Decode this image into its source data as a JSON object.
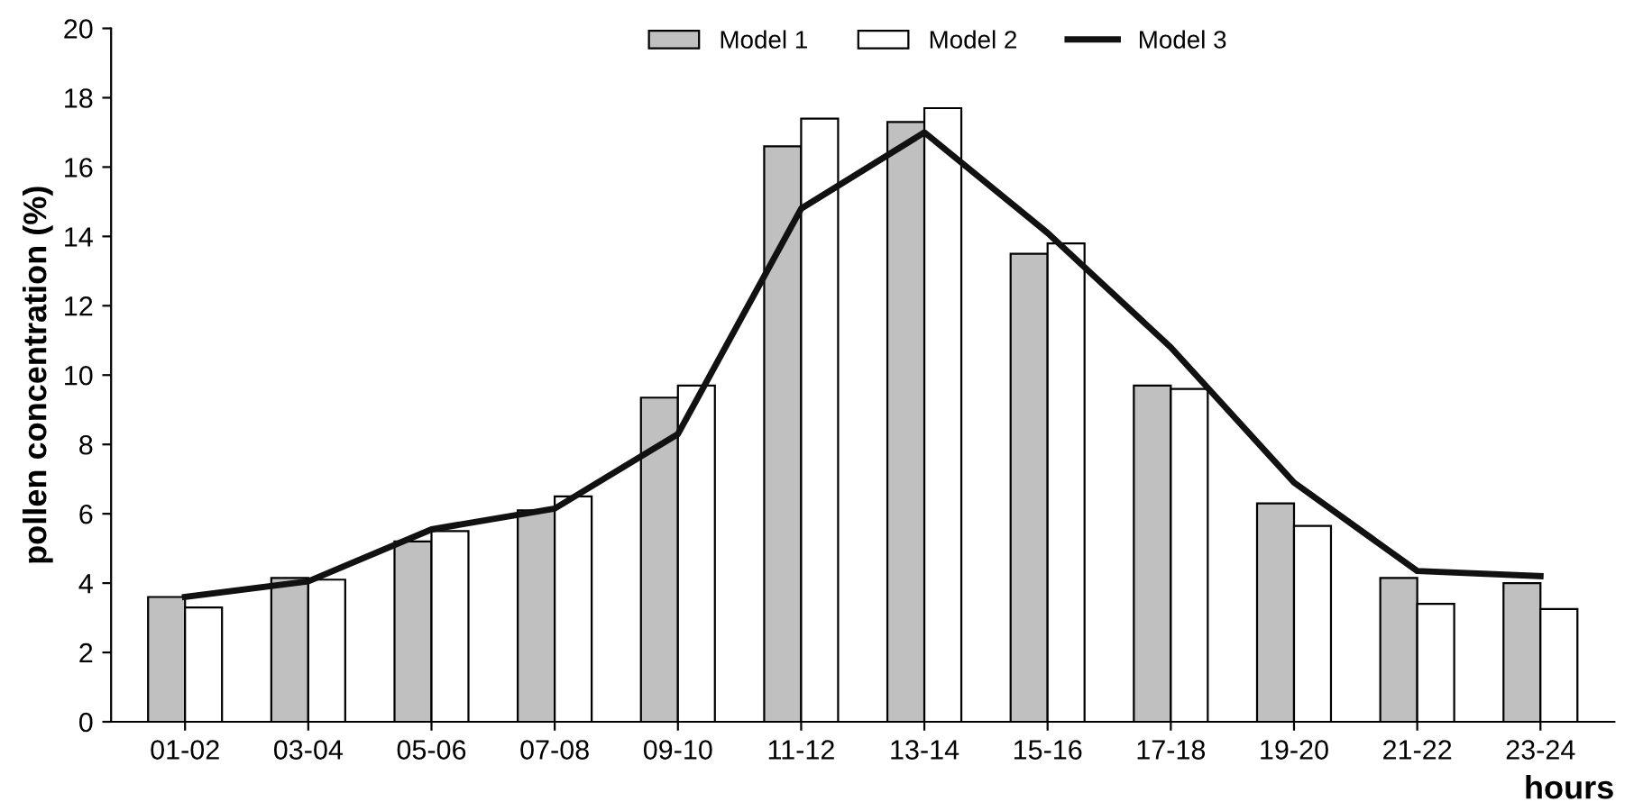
{
  "chart_data": {
    "type": "bar",
    "xlabel": "hours",
    "ylabel": "pollen concentration (%)",
    "categories": [
      "01-02",
      "03-04",
      "05-06",
      "07-08",
      "09-10",
      "11-12",
      "13-14",
      "15-16",
      "17-18",
      "19-20",
      "21-22",
      "23-24"
    ],
    "series": [
      {
        "name": "Model 1",
        "color": "#c0c0c0",
        "values": [
          3.6,
          4.15,
          5.2,
          6.1,
          9.35,
          16.6,
          17.3,
          13.5,
          9.7,
          6.3,
          4.15,
          4.0
        ]
      },
      {
        "name": "Model 2",
        "color": "#ffffff",
        "values": [
          3.3,
          4.1,
          5.5,
          6.5,
          9.7,
          17.4,
          17.7,
          13.8,
          9.6,
          5.65,
          3.4,
          3.25
        ]
      },
      {
        "name": "Model 3",
        "color": "#111111",
        "type": "line",
        "values": [
          3.6,
          4.05,
          5.55,
          6.15,
          8.3,
          14.8,
          17.0,
          14.1,
          10.8,
          6.9,
          4.35,
          4.2
        ]
      }
    ],
    "ylim": [
      0,
      20
    ],
    "yticks": [
      0,
      2,
      4,
      6,
      8,
      10,
      12,
      14,
      16,
      18,
      20
    ],
    "grid": false,
    "legend": "top",
    "marker": "none",
    "line_style": "solid"
  }
}
